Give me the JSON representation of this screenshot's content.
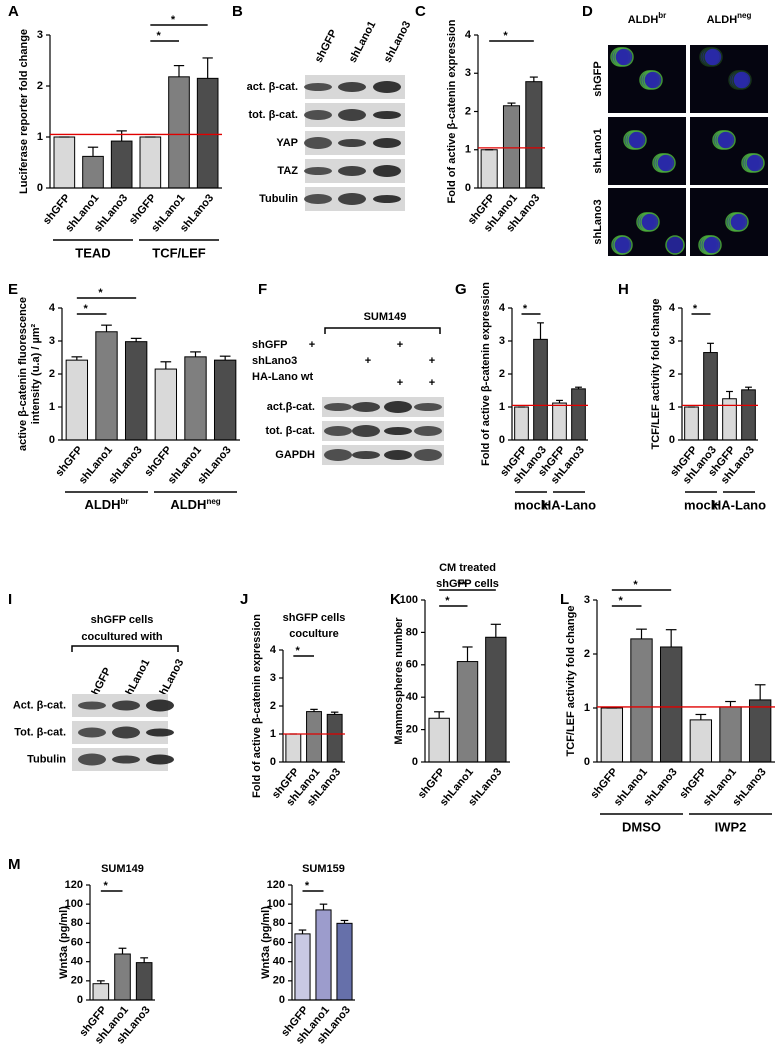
{
  "chart_data": [
    {
      "type": "bar",
      "panel": "A",
      "ylabel": "Luciferase reporter fold change",
      "categories": [
        "shGFP",
        "shLano1",
        "shLano3",
        "shGFP",
        "shLano1",
        "shLano3"
      ],
      "values": [
        1.0,
        0.62,
        0.92,
        1.0,
        2.18,
        2.15
      ],
      "errors": [
        0,
        0.18,
        0.2,
        0,
        0.22,
        0.4
      ],
      "colors": [
        "#d9d9d9",
        "#7f7f7f",
        "#4d4d4d",
        "#d9d9d9",
        "#7f7f7f",
        "#4d4d4d"
      ],
      "ylim": [
        0,
        3
      ],
      "yticks": [
        0,
        1,
        2,
        3
      ],
      "reference_line": 1.05,
      "groups": [
        "TEAD",
        "TCF/LEF"
      ],
      "significance": [
        [
          3,
          4,
          "*"
        ],
        [
          3,
          5,
          "*"
        ]
      ]
    },
    {
      "type": "bar",
      "panel": "C",
      "ylabel": "Fold of active β-catenin expression",
      "categories": [
        "shGFP",
        "shLano1",
        "shLano3"
      ],
      "values": [
        1.0,
        2.15,
        2.78
      ],
      "errors": [
        0,
        0.07,
        0.12
      ],
      "colors": [
        "#d9d9d9",
        "#7f7f7f",
        "#4d4d4d"
      ],
      "ylim": [
        0,
        4
      ],
      "yticks": [
        0,
        1,
        2,
        3,
        4
      ],
      "reference_line": 1.05,
      "significance": [
        [
          0,
          2,
          "*"
        ]
      ]
    },
    {
      "type": "bar",
      "panel": "E",
      "ylabel": [
        "active β-catenin fluorescence",
        "intensity (u.a) / µm²"
      ],
      "categories": [
        "shGFP",
        "shLano1",
        "shLano3",
        "shGFP",
        "shLano1",
        "shLano3"
      ],
      "values": [
        2.42,
        3.28,
        2.98,
        2.15,
        2.52,
        2.42
      ],
      "errors": [
        0.1,
        0.2,
        0.1,
        0.22,
        0.15,
        0.12
      ],
      "colors": [
        "#d9d9d9",
        "#7f7f7f",
        "#4d4d4d",
        "#d9d9d9",
        "#7f7f7f",
        "#4d4d4d"
      ],
      "ylim": [
        0,
        4
      ],
      "yticks": [
        0,
        1,
        2,
        3,
        4
      ],
      "groups": [
        [
          "ALDH",
          "br"
        ],
        [
          "ALDH",
          "neg"
        ]
      ],
      "significance": [
        [
          0,
          1,
          "*"
        ],
        [
          0,
          2,
          "*"
        ]
      ]
    },
    {
      "type": "bar",
      "panel": "G",
      "ylabel": "Fold of active β-catenin expression",
      "categories": [
        "shGFP",
        "shLano3",
        "shGFP",
        "shLano3"
      ],
      "values": [
        1.0,
        3.05,
        1.12,
        1.55
      ],
      "errors": [
        0,
        0.5,
        0.08,
        0.05
      ],
      "colors": [
        "#d9d9d9",
        "#4d4d4d",
        "#d9d9d9",
        "#4d4d4d"
      ],
      "ylim": [
        0,
        4
      ],
      "yticks": [
        0,
        1,
        2,
        3,
        4
      ],
      "reference_line": 1.05,
      "groups": [
        "mock",
        "HA-Lano"
      ],
      "significance": [
        [
          0,
          1,
          "*"
        ]
      ]
    },
    {
      "type": "bar",
      "panel": "H",
      "ylabel": "TCF/LEF activity fold change",
      "categories": [
        "shGFP",
        "shLano3",
        "shGFP",
        "shLano3"
      ],
      "values": [
        1.0,
        2.65,
        1.25,
        1.52
      ],
      "errors": [
        0,
        0.28,
        0.22,
        0.08
      ],
      "colors": [
        "#d9d9d9",
        "#4d4d4d",
        "#d9d9d9",
        "#4d4d4d"
      ],
      "ylim": [
        0,
        4
      ],
      "yticks": [
        0,
        1,
        2,
        3,
        4
      ],
      "reference_line": 1.05,
      "groups": [
        "mock",
        "HA-Lano"
      ],
      "significance": [
        [
          0,
          1,
          "*"
        ]
      ]
    },
    {
      "type": "bar",
      "panel": "J",
      "title": [
        "shGFP cells",
        "coculture"
      ],
      "ylabel": "Fold of active β-catenin expression",
      "categories": [
        "shGFP",
        "shLano1",
        "shLano3"
      ],
      "values": [
        1.0,
        1.8,
        1.7
      ],
      "errors": [
        0,
        0.08,
        0.08
      ],
      "colors": [
        "#d9d9d9",
        "#7f7f7f",
        "#4d4d4d"
      ],
      "ylim": [
        0,
        4
      ],
      "yticks": [
        0,
        1,
        2,
        3,
        4
      ],
      "reference_line": 1.0,
      "significance": [
        [
          0,
          1,
          "*"
        ]
      ]
    },
    {
      "type": "bar",
      "panel": "K",
      "title": [
        "CM treated",
        "shGFP cells"
      ],
      "ylabel": "Mammospheres number",
      "categories": [
        "shGFP",
        "shLano1",
        "shLano3"
      ],
      "values": [
        27,
        62,
        77
      ],
      "errors": [
        4,
        9,
        8
      ],
      "colors": [
        "#d9d9d9",
        "#7f7f7f",
        "#4d4d4d"
      ],
      "ylim": [
        0,
        100
      ],
      "yticks": [
        0,
        20,
        40,
        60,
        80,
        100
      ],
      "significance": [
        [
          0,
          1,
          "*"
        ],
        [
          0,
          2,
          "**"
        ]
      ]
    },
    {
      "type": "bar",
      "panel": "L",
      "ylabel": "TCF/LEF activity fold change",
      "categories": [
        "shGFP",
        "shLano1",
        "shLano3",
        "shGFP",
        "shLano1",
        "shLano3"
      ],
      "values": [
        1.0,
        2.28,
        2.13,
        0.78,
        1.02,
        1.15
      ],
      "errors": [
        0,
        0.18,
        0.32,
        0.1,
        0.1,
        0.28
      ],
      "colors": [
        "#d9d9d9",
        "#7f7f7f",
        "#4d4d4d",
        "#d9d9d9",
        "#7f7f7f",
        "#4d4d4d"
      ],
      "ylim": [
        0,
        3
      ],
      "yticks": [
        0,
        1,
        2,
        3
      ],
      "reference_line": 1.02,
      "groups": [
        "DMSO",
        "IWP2"
      ],
      "significance": [
        [
          0,
          1,
          "*"
        ],
        [
          0,
          2,
          "*"
        ]
      ]
    },
    {
      "type": "bar",
      "panel": "M",
      "title": "SUM149",
      "ylabel": "Wnt3a (pg/ml)",
      "categories": [
        "shGFP",
        "shLano1",
        "shLano3"
      ],
      "values": [
        17,
        48,
        39
      ],
      "errors": [
        3,
        6,
        5
      ],
      "colors": [
        "#d9d9d9",
        "#7f7f7f",
        "#4d4d4d"
      ],
      "ylim": [
        0,
        120
      ],
      "yticks": [
        0,
        20,
        40,
        60,
        80,
        100,
        120
      ],
      "significance": [
        [
          0,
          1,
          "*"
        ]
      ]
    },
    {
      "type": "bar",
      "title": "SUM159",
      "ylabel": "Wnt3a (pg/ml)",
      "categories": [
        "shGFP",
        "shLano1",
        "shLano3"
      ],
      "values": [
        69,
        94,
        80
      ],
      "errors": [
        4,
        6,
        3
      ],
      "colors": [
        "#c9c9e3",
        "#9c9ccc",
        "#6670aa"
      ],
      "ylim": [
        0,
        120
      ],
      "yticks": [
        0,
        20,
        40,
        60,
        80,
        100,
        120
      ],
      "significance": [
        [
          0,
          1,
          "*"
        ]
      ]
    }
  ],
  "blots": [
    {
      "panel": "B",
      "lanes": [
        "shGFP",
        "shLano1",
        "shLano3"
      ],
      "rows": [
        "act. β-cat.",
        "tot. β-cat.",
        "YAP",
        "TAZ",
        "Tubulin"
      ]
    },
    {
      "panel": "I",
      "header": [
        "shGFP cells",
        "cocultured with"
      ],
      "lanes": [
        "shGFP",
        "shLano1",
        "shLano3"
      ],
      "rows": [
        "Act. β-cat.",
        "Tot. β-cat.",
        "Tubulin"
      ]
    },
    {
      "panel": "F",
      "title": "SUM149",
      "conditions": [
        {
          "name": "shGFP",
          "marks": [
            "+",
            null,
            "+",
            null
          ]
        },
        {
          "name": "shLano3",
          "marks": [
            null,
            "+",
            null,
            "+"
          ]
        },
        {
          "name": "HA-Lano wt",
          "marks": [
            null,
            null,
            "+",
            "+"
          ]
        }
      ],
      "rows": [
        "act.β-cat.",
        "tot. β-cat.",
        "GAPDH"
      ]
    }
  ],
  "microscopy": {
    "panel": "D",
    "columns": [
      [
        "ALDH",
        "br"
      ],
      [
        "ALDH",
        "neg"
      ]
    ],
    "rows": [
      "shGFP",
      "shLano1",
      "shLano3"
    ]
  }
}
